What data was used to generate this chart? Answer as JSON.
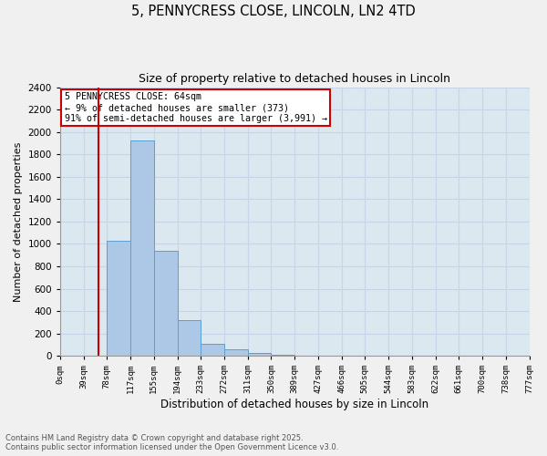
{
  "title1": "5, PENNYCRESS CLOSE, LINCOLN, LN2 4TD",
  "title2": "Size of property relative to detached houses in Lincoln",
  "xlabel": "Distribution of detached houses by size in Lincoln",
  "ylabel": "Number of detached properties",
  "bin_labels": [
    "0sqm",
    "39sqm",
    "78sqm",
    "117sqm",
    "155sqm",
    "194sqm",
    "233sqm",
    "272sqm",
    "311sqm",
    "350sqm",
    "389sqm",
    "427sqm",
    "466sqm",
    "505sqm",
    "544sqm",
    "583sqm",
    "622sqm",
    "661sqm",
    "700sqm",
    "738sqm",
    "777sqm"
  ],
  "bar_values": [
    0,
    0,
    1025,
    1925,
    935,
    315,
    110,
    55,
    25,
    10,
    5,
    0,
    0,
    0,
    0,
    0,
    0,
    0,
    0,
    0,
    0
  ],
  "bar_color": "#adc8e6",
  "bar_edge_color": "#5a9fd4",
  "ylim": [
    0,
    2400
  ],
  "red_line_x": 1.64,
  "annotation_text": "5 PENNYCRESS CLOSE: 64sqm\n← 9% of detached houses are smaller (373)\n91% of semi-detached houses are larger (3,991) →",
  "annotation_box_color": "#ffffff",
  "annotation_border_color": "#cc0000",
  "footer1": "Contains HM Land Registry data © Crown copyright and database right 2025.",
  "footer2": "Contains public sector information licensed under the Open Government Licence v3.0.",
  "grid_color": "#c8d4e8",
  "background_color": "#dce8f0",
  "fig_background": "#f0f0f0"
}
